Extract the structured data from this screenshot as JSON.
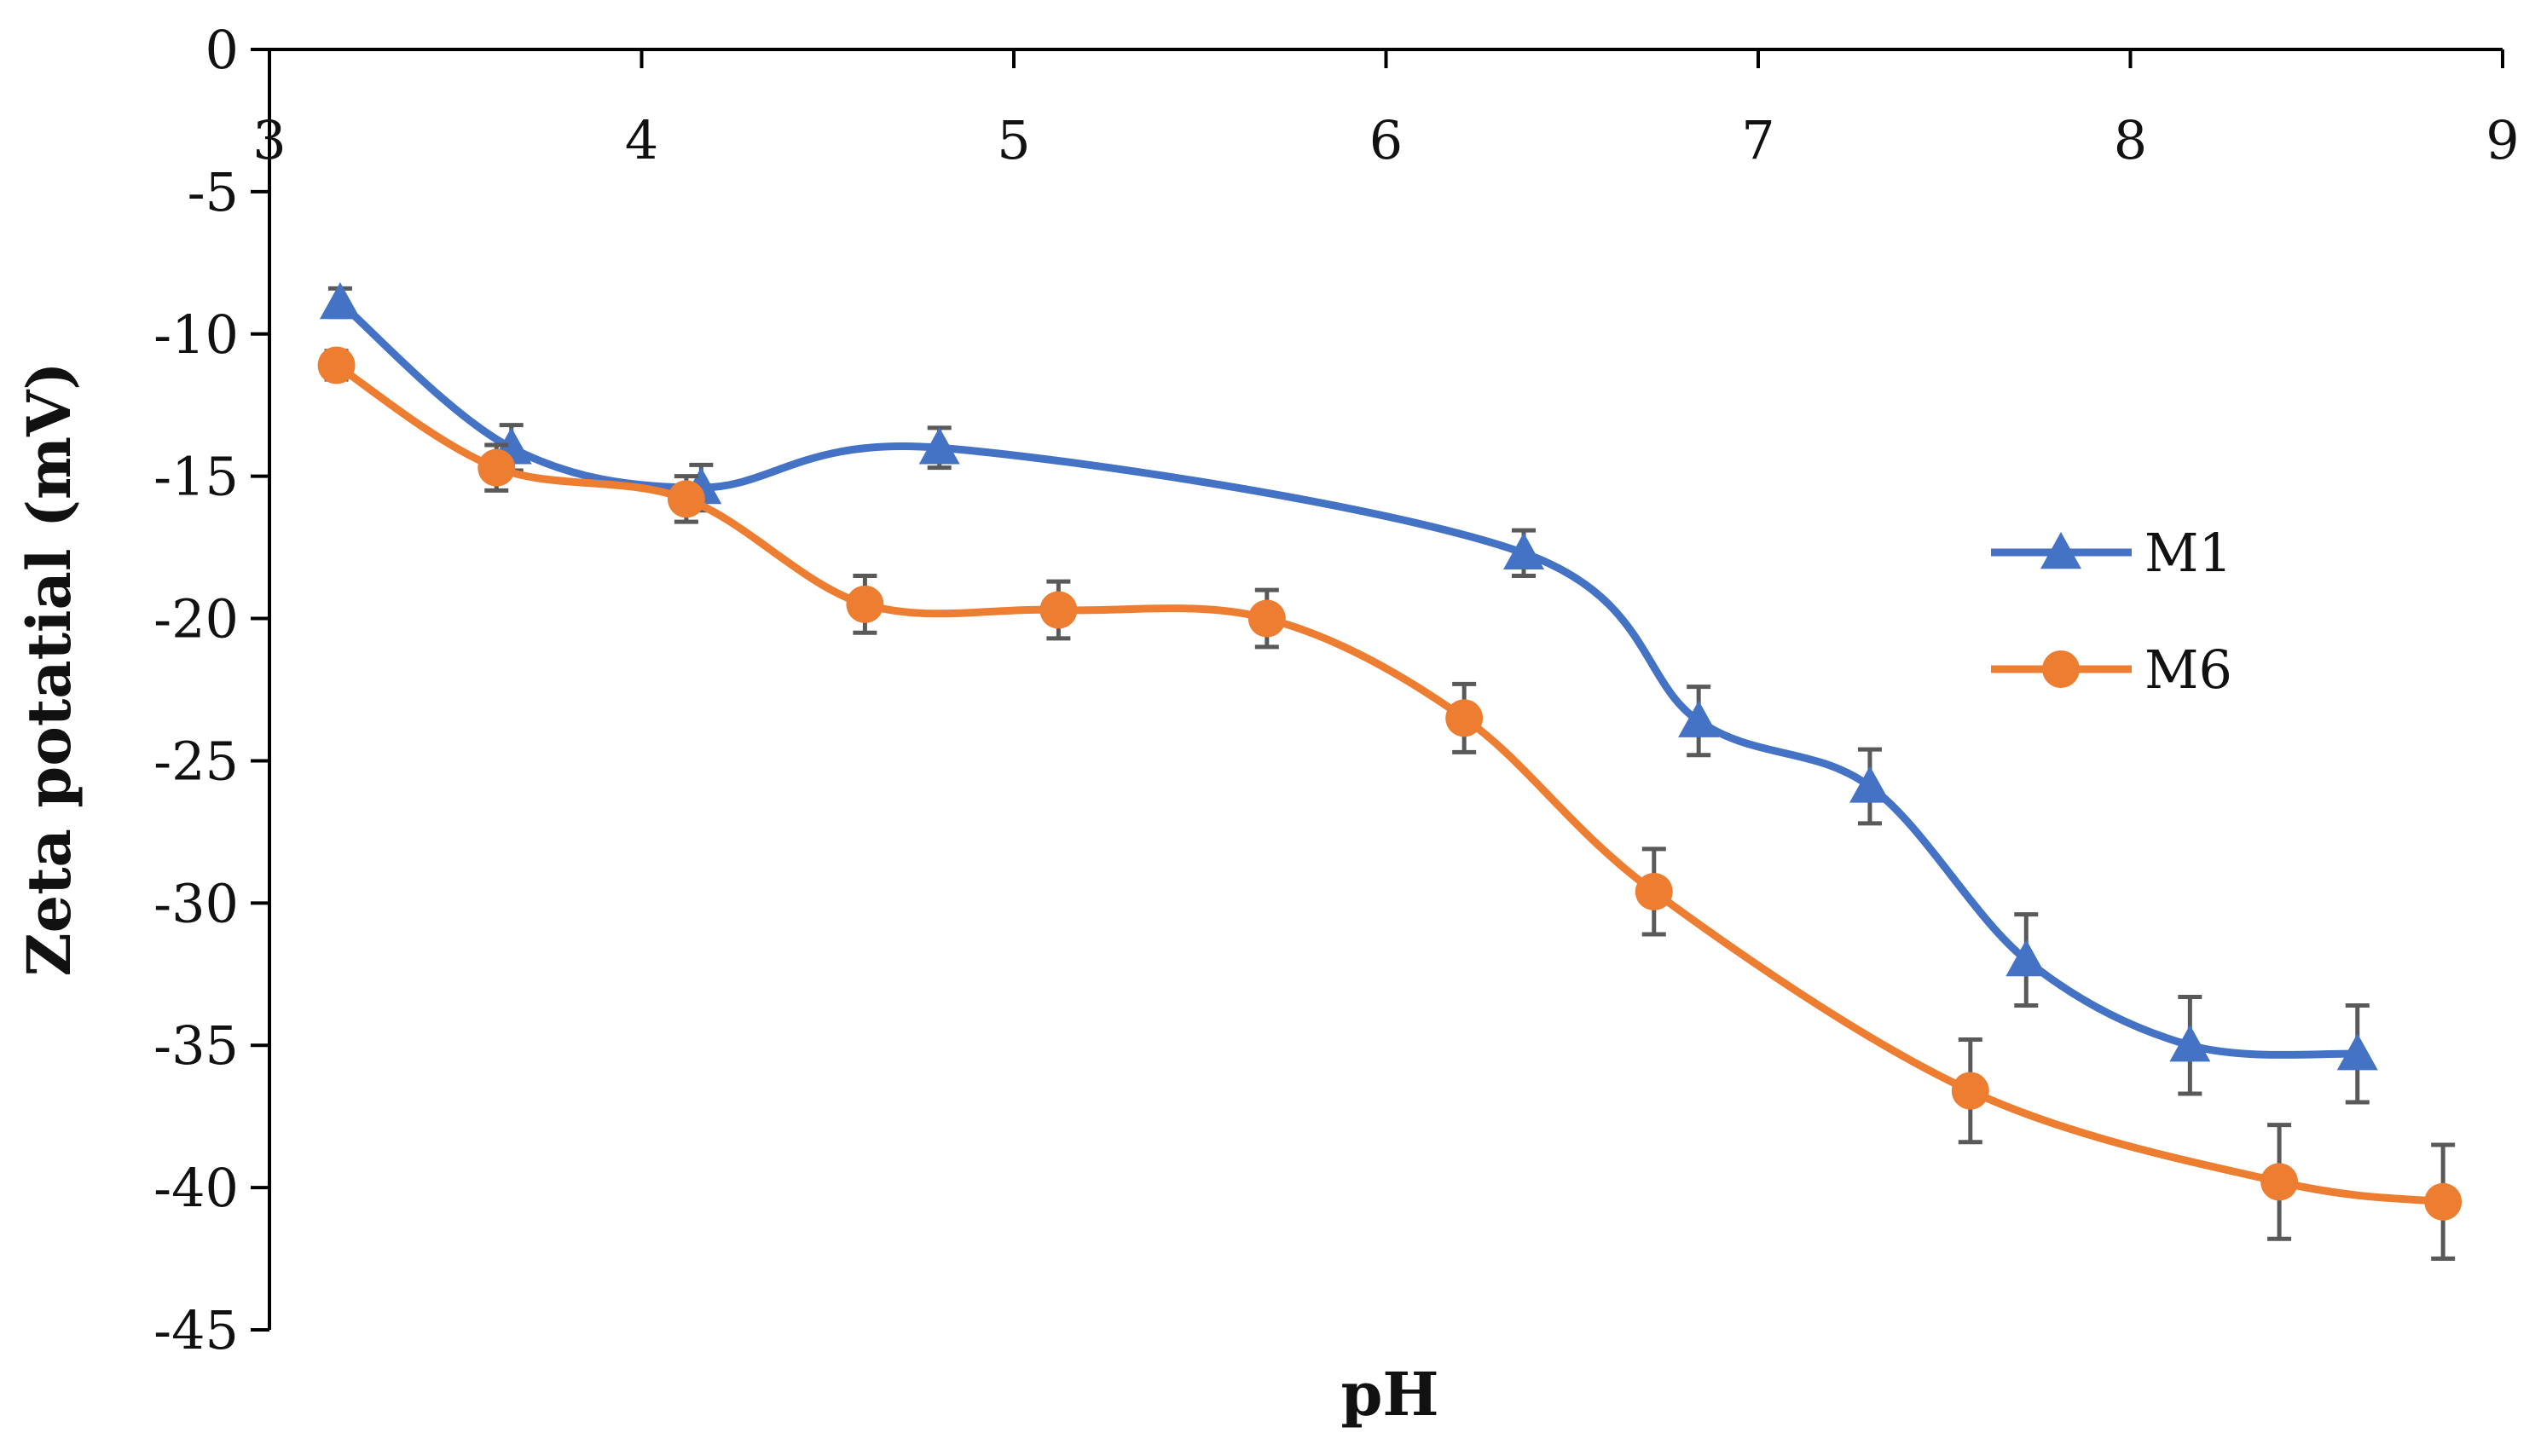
{
  "chart_data": {
    "type": "line",
    "title": "",
    "xlabel": "pH",
    "ylabel": "Zeta potatial (mV)",
    "xlim": [
      3,
      9
    ],
    "ylim": [
      -45,
      0
    ],
    "xticks": [
      3,
      4,
      5,
      6,
      7,
      8,
      9
    ],
    "yticks": [
      0,
      -5,
      -10,
      -15,
      -20,
      -25,
      -30,
      -35,
      -40,
      -45
    ],
    "x_axis_position": "top",
    "legend_position": "right",
    "series": [
      {
        "name": "M1",
        "color": "#4472C4",
        "marker": "triangle",
        "x": [
          3.19,
          3.65,
          4.16,
          4.8,
          6.37,
          6.84,
          7.3,
          7.72,
          8.16,
          8.61
        ],
        "y": [
          -8.9,
          -14.0,
          -15.4,
          -14.0,
          -17.7,
          -23.6,
          -25.9,
          -32.0,
          -35.0,
          -35.3
        ],
        "err": [
          0.5,
          0.8,
          0.8,
          0.7,
          0.8,
          1.2,
          1.3,
          1.6,
          1.7,
          1.7
        ]
      },
      {
        "name": "M6",
        "color": "#ED7D31",
        "marker": "circle",
        "x": [
          3.18,
          3.61,
          4.12,
          4.6,
          5.12,
          5.68,
          6.21,
          6.72,
          7.57,
          8.4,
          8.84
        ],
        "y": [
          -11.1,
          -14.7,
          -15.8,
          -19.5,
          -19.7,
          -20.0,
          -23.5,
          -29.6,
          -36.6,
          -39.8,
          -40.5
        ],
        "err": [
          0.5,
          0.8,
          0.8,
          1.0,
          1.0,
          1.0,
          1.2,
          1.5,
          1.8,
          2.0,
          2.0
        ]
      }
    ]
  }
}
